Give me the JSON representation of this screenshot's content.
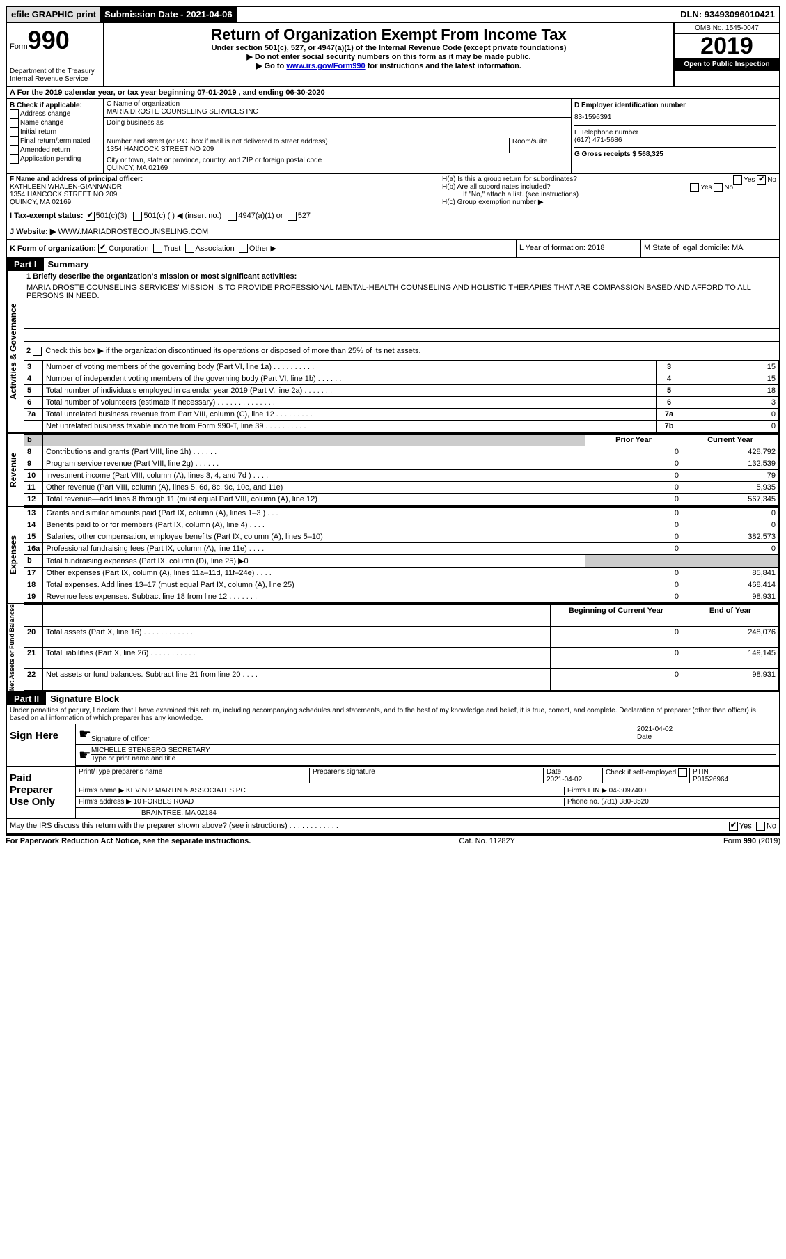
{
  "topbar": {
    "efile": "efile GRAPHIC print",
    "sub_lbl": "Submission Date - 2021-04-06",
    "dln": "DLN: 93493096010421"
  },
  "header": {
    "form_word": "Form",
    "num": "990",
    "title": "Return of Organization Exempt From Income Tax",
    "sub1": "Under section 501(c), 527, or 4947(a)(1) of the Internal Revenue Code (except private foundations)",
    "sub2": "▶ Do not enter social security numbers on this form as it may be made public.",
    "sub3_pre": "▶ Go to ",
    "sub3_link": "www.irs.gov/Form990",
    "sub3_post": " for instructions and the latest information.",
    "dept": "Department of the Treasury",
    "irs": "Internal Revenue Service",
    "omb": "OMB No. 1545-0047",
    "year": "2019",
    "open": "Open to Public Inspection"
  },
  "rowA": "A For the 2019 calendar year, or tax year beginning 07-01-2019   , and ending 06-30-2020",
  "B": {
    "hdr": "B Check if applicable:",
    "items": [
      "Address change",
      "Name change",
      "Initial return",
      "Final return/terminated",
      "Amended return",
      "Application pending"
    ]
  },
  "C": {
    "name_lbl": "C Name of organization",
    "name": "MARIA DROSTE COUNSELING SERVICES INC",
    "dba_lbl": "Doing business as",
    "addr_lbl": "Number and street (or P.O. box if mail is not delivered to street address)",
    "room_lbl": "Room/suite",
    "addr": "1354 HANCOCK STREET NO 209",
    "city_lbl": "City or town, state or province, country, and ZIP or foreign postal code",
    "city": "QUINCY, MA  02169"
  },
  "D": {
    "lbl": "D Employer identification number",
    "val": "83-1596391"
  },
  "E": {
    "lbl": "E Telephone number",
    "val": "(617) 471-5686"
  },
  "G": {
    "lbl": "G Gross receipts $ 568,325"
  },
  "F": {
    "lbl": "F  Name and address of principal officer:",
    "v1": "KATHLEEN WHALEN-GIANNANDR",
    "v2": "1354 HANCOCK STREET NO 209",
    "v3": "QUINCY, MA  02169"
  },
  "H": {
    "a": "H(a)  Is this a group return for subordinates?",
    "b": "H(b)  Are all subordinates included?",
    "note": "If \"No,\" attach a list. (see instructions)",
    "c": "H(c)  Group exemption number ▶",
    "yes": "Yes",
    "no": "No"
  },
  "I": {
    "lbl": "I  Tax-exempt status:",
    "o1": "501(c)(3)",
    "o2": "501(c) (  ) ◀ (insert no.)",
    "o3": "4947(a)(1) or",
    "o4": "527"
  },
  "J": {
    "lbl": "J   Website: ▶",
    "val": "WWW.MARIADROSTECOUNSELING.COM"
  },
  "K": {
    "lbl": "K Form of organization:",
    "o1": "Corporation",
    "o2": "Trust",
    "o3": "Association",
    "o4": "Other ▶"
  },
  "L": {
    "lbl": "L Year of formation: 2018"
  },
  "M": {
    "lbl": "M State of legal domicile: MA"
  },
  "part1": {
    "pill": "Part I",
    "title": "Summary"
  },
  "summary": {
    "l1_lbl": "1  Briefly describe the organization's mission or most significant activities:",
    "l1_txt": "MARIA DROSTE COUNSELING SERVICES' MISSION IS TO PROVIDE PROFESSIONAL MENTAL-HEALTH COUNSELING AND HOLISTIC THERAPIES THAT ARE COMPASSION BASED AND AFFORD TO ALL PERSONS IN NEED.",
    "l2": "Check this box ▶      if the organization discontinued its operations or disposed of more than 25% of its net assets.",
    "rows_gov": [
      {
        "n": "3",
        "t": "Number of voting members of the governing body (Part VI, line 1a) . . . . . . . . . .",
        "b": "3",
        "v": "15"
      },
      {
        "n": "4",
        "t": "Number of independent voting members of the governing body (Part VI, line 1b) . . . . . .",
        "b": "4",
        "v": "15"
      },
      {
        "n": "5",
        "t": "Total number of individuals employed in calendar year 2019 (Part V, line 2a) . . . . . . .",
        "b": "5",
        "v": "18"
      },
      {
        "n": "6",
        "t": "Total number of volunteers (estimate if necessary)  . . . . . . . . . . . . . .",
        "b": "6",
        "v": "3"
      },
      {
        "n": "7a",
        "t": "Total unrelated business revenue from Part VIII, column (C), line 12  . . . . . . . . .",
        "b": "7a",
        "v": "0"
      },
      {
        "n": "",
        "t": "Net unrelated business taxable income from Form 990-T, line 39  . . . . . . . . . .",
        "b": "7b",
        "v": "0"
      }
    ],
    "prior": "Prior Year",
    "curr": "Current Year",
    "rows_rev": [
      {
        "n": "8",
        "t": "Contributions and grants (Part VIII, line 1h)  . . . . . .",
        "p": "0",
        "c": "428,792"
      },
      {
        "n": "9",
        "t": "Program service revenue (Part VIII, line 2g)  . . . . . .",
        "p": "0",
        "c": "132,539"
      },
      {
        "n": "10",
        "t": "Investment income (Part VIII, column (A), lines 3, 4, and 7d )  . . . .",
        "p": "0",
        "c": "79"
      },
      {
        "n": "11",
        "t": "Other revenue (Part VIII, column (A), lines 5, 6d, 8c, 9c, 10c, and 11e)",
        "p": "0",
        "c": "5,935"
      },
      {
        "n": "12",
        "t": "Total revenue—add lines 8 through 11 (must equal Part VIII, column (A), line 12)",
        "p": "0",
        "c": "567,345"
      }
    ],
    "rows_exp": [
      {
        "n": "13",
        "t": "Grants and similar amounts paid (Part IX, column (A), lines 1–3 )  . . .",
        "p": "0",
        "c": "0"
      },
      {
        "n": "14",
        "t": "Benefits paid to or for members (Part IX, column (A), line 4)  . . . .",
        "p": "0",
        "c": "0"
      },
      {
        "n": "15",
        "t": "Salaries, other compensation, employee benefits (Part IX, column (A), lines 5–10)",
        "p": "0",
        "c": "382,573"
      },
      {
        "n": "16a",
        "t": "Professional fundraising fees (Part IX, column (A), line 11e)  . . . .",
        "p": "0",
        "c": "0"
      },
      {
        "n": "b",
        "t": "Total fundraising expenses (Part IX, column (D), line 25) ▶0",
        "p": "",
        "c": "",
        "grey": true
      },
      {
        "n": "17",
        "t": "Other expenses (Part IX, column (A), lines 11a–11d, 11f–24e)  . . . .",
        "p": "0",
        "c": "85,841"
      },
      {
        "n": "18",
        "t": "Total expenses. Add lines 13–17 (must equal Part IX, column (A), line 25)",
        "p": "0",
        "c": "468,414"
      },
      {
        "n": "19",
        "t": "Revenue less expenses. Subtract line 18 from line 12  . . . . . . .",
        "p": "0",
        "c": "98,931"
      }
    ],
    "boy": "Beginning of Current Year",
    "eoy": "End of Year",
    "rows_na": [
      {
        "n": "20",
        "t": "Total assets (Part X, line 16)  . . . . . . . . . . . .",
        "p": "0",
        "c": "248,076"
      },
      {
        "n": "21",
        "t": "Total liabilities (Part X, line 26)  . . . . . . . . . . .",
        "p": "0",
        "c": "149,145"
      },
      {
        "n": "22",
        "t": "Net assets or fund balances. Subtract line 21 from line 20  . . . .",
        "p": "0",
        "c": "98,931"
      }
    ],
    "side_gov": "Activities & Governance",
    "side_rev": "Revenue",
    "side_exp": "Expenses",
    "side_na": "Net Assets or Fund Balances"
  },
  "part2": {
    "pill": "Part II",
    "title": "Signature Block"
  },
  "sig": {
    "decl": "Under penalties of perjury, I declare that I have examined this return, including accompanying schedules and statements, and to the best of my knowledge and belief, it is true, correct, and complete. Declaration of preparer (other than officer) is based on all information of which preparer has any knowledge.",
    "sign_here": "Sign Here",
    "sig_officer": "Signature of officer",
    "date": "Date",
    "date_val": "2021-04-02",
    "name": "MICHELLE STENBERG SECRETARY",
    "name_lbl": "Type or print name and title",
    "paid": "Paid Preparer Use Only",
    "pt_name_lbl": "Print/Type preparer's name",
    "pt_sig_lbl": "Preparer's signature",
    "pt_date": "2021-04-02",
    "self_emp": "Check       if self-employed",
    "ptin_lbl": "PTIN",
    "ptin": "P01526964",
    "firm_name_lbl": "Firm's name   ▶",
    "firm_name": "KEVIN P MARTIN & ASSOCIATES PC",
    "firm_ein_lbl": "Firm's EIN ▶",
    "firm_ein": "04-3097400",
    "firm_addr_lbl": "Firm's address ▶",
    "firm_addr1": "10 FORBES ROAD",
    "firm_addr2": "BRAINTREE, MA  02184",
    "phone_lbl": "Phone no.",
    "phone": "(781) 380-3520",
    "may": "May the IRS discuss this return with the preparer shown above? (see instructions)  . . . . . . . . . . . .",
    "footer_l": "For Paperwork Reduction Act Notice, see the separate instructions.",
    "footer_c": "Cat. No. 11282Y",
    "footer_r": "Form 990 (2019)"
  }
}
